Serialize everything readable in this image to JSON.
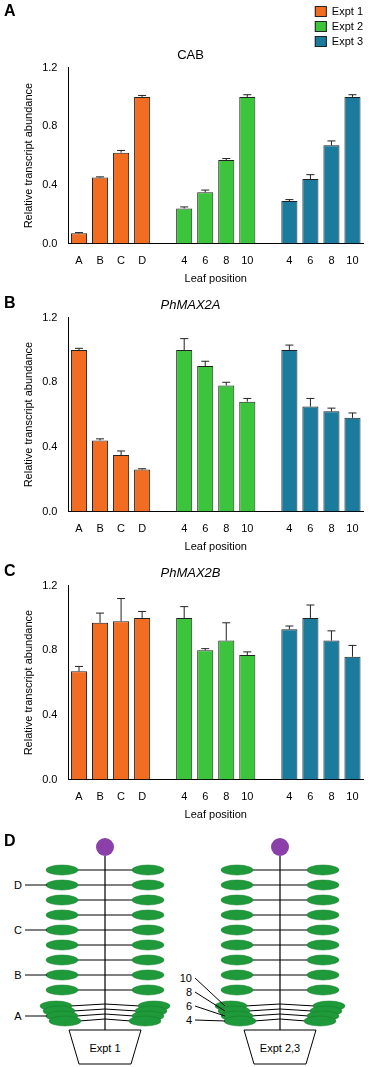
{
  "chart_data": [
    {
      "type": "bar",
      "panel": "A",
      "title": "CAB",
      "x_label": "Leaf position",
      "y_label": "Relative transcript abundance",
      "categories": [
        "A",
        "B",
        "C",
        "D",
        null,
        "4",
        "6",
        "8",
        "10",
        null,
        "4",
        "6",
        "8",
        "10"
      ],
      "series": [
        {
          "name": "Expt 1",
          "color": "#f26c21",
          "values": [
            0.07,
            0.45,
            0.62,
            1.0,
            null,
            null,
            null,
            null,
            null,
            null,
            null,
            null,
            null,
            null
          ],
          "errors": [
            0.005,
            0.005,
            0.015,
            0.01,
            null,
            null,
            null,
            null,
            null,
            null,
            null,
            null,
            null,
            null
          ]
        },
        {
          "name": "Expt 2",
          "color": "#3cc43c",
          "values": [
            null,
            null,
            null,
            null,
            null,
            0.24,
            0.35,
            0.57,
            1.0,
            null,
            null,
            null,
            null,
            null
          ],
          "errors": [
            null,
            null,
            null,
            null,
            null,
            0.01,
            0.015,
            0.01,
            0.015,
            null,
            null,
            null,
            null,
            null
          ]
        },
        {
          "name": "Expt 3",
          "color": "#1b7b9c",
          "values": [
            null,
            null,
            null,
            null,
            null,
            null,
            null,
            null,
            null,
            null,
            0.29,
            0.44,
            0.67,
            1.0
          ],
          "errors": [
            null,
            null,
            null,
            null,
            null,
            null,
            null,
            null,
            null,
            null,
            0.01,
            0.03,
            0.03,
            0.015
          ]
        }
      ],
      "ylim": [
        0,
        1.2
      ],
      "yticks": [
        {
          "value": 0,
          "label": "0.0"
        },
        0.4,
        0.8,
        1.2
      ],
      "grid": false,
      "legend": "top-right"
    },
    {
      "type": "bar",
      "panel": "B",
      "title": "PhMAX2A",
      "x_label": "Leaf position",
      "y_label": "Relative transcript abundance",
      "categories": [
        "A",
        "B",
        "C",
        "D",
        null,
        "4",
        "6",
        "8",
        "10",
        null,
        "4",
        "6",
        "8",
        "10"
      ],
      "series": [
        {
          "name": "Expt 1",
          "color": "#f26c21",
          "values": [
            1.0,
            0.44,
            0.35,
            0.26,
            null,
            null,
            null,
            null,
            null,
            null,
            null,
            null,
            null,
            null
          ],
          "errors": [
            0.01,
            0.01,
            0.025,
            0.005,
            null,
            null,
            null,
            null,
            null,
            null,
            null,
            null,
            null,
            null
          ]
        },
        {
          "name": "Expt 2",
          "color": "#3cc43c",
          "values": [
            null,
            null,
            null,
            null,
            null,
            1.0,
            0.9,
            0.78,
            0.68,
            null,
            null,
            null,
            null,
            null
          ],
          "errors": [
            null,
            null,
            null,
            null,
            null,
            0.07,
            0.03,
            0.02,
            0.02,
            null,
            null,
            null,
            null,
            null
          ]
        },
        {
          "name": "Expt 3",
          "color": "#1b7b9c",
          "values": [
            null,
            null,
            null,
            null,
            null,
            null,
            null,
            null,
            null,
            null,
            1.0,
            0.65,
            0.62,
            0.58
          ],
          "errors": [
            null,
            null,
            null,
            null,
            null,
            null,
            null,
            null,
            null,
            null,
            0.03,
            0.05,
            0.02,
            0.03
          ]
        }
      ],
      "ylim": [
        0,
        1.2
      ],
      "yticks": [
        {
          "value": 0,
          "label": "0.0"
        },
        0.4,
        0.8,
        1.2
      ],
      "grid": false
    },
    {
      "type": "bar",
      "panel": "C",
      "title": "PhMAX2B",
      "x_label": "Leaf position",
      "y_label": "Relative transcript abundance",
      "categories": [
        "A",
        "B",
        "C",
        "D",
        null,
        "4",
        "6",
        "8",
        "10",
        null,
        "4",
        "6",
        "8",
        "10"
      ],
      "series": [
        {
          "name": "Expt 1",
          "color": "#f26c21",
          "values": [
            0.67,
            0.97,
            0.98,
            1.0,
            null,
            null,
            null,
            null,
            null,
            null,
            null,
            null,
            null,
            null
          ],
          "errors": [
            0.03,
            0.06,
            0.14,
            0.04,
            null,
            null,
            null,
            null,
            null,
            null,
            null,
            null,
            null,
            null
          ]
        },
        {
          "name": "Expt 2",
          "color": "#3cc43c",
          "values": [
            null,
            null,
            null,
            null,
            null,
            1.0,
            0.8,
            0.86,
            0.77,
            null,
            null,
            null,
            null,
            null
          ],
          "errors": [
            null,
            null,
            null,
            null,
            null,
            0.07,
            0.01,
            0.11,
            0.02,
            null,
            null,
            null,
            null,
            null
          ]
        },
        {
          "name": "Expt 3",
          "color": "#1b7b9c",
          "values": [
            null,
            null,
            null,
            null,
            null,
            null,
            null,
            null,
            null,
            null,
            0.93,
            1.0,
            0.86,
            0.76
          ],
          "errors": [
            null,
            null,
            null,
            null,
            null,
            null,
            null,
            null,
            null,
            null,
            0.02,
            0.08,
            0.06,
            0.07
          ]
        }
      ],
      "ylim": [
        0,
        1.2
      ],
      "yticks": [
        {
          "value": 0,
          "label": "0.0"
        },
        0.4,
        0.8,
        1.2
      ],
      "grid": false
    }
  ],
  "diagram": {
    "panel": "D",
    "plants": [
      {
        "label": "Expt 1",
        "leaf_labels": [
          "A",
          "B",
          "C",
          "D"
        ]
      },
      {
        "label": "Expt 2,3",
        "leaf_labels": [
          "4",
          "6",
          "8",
          "10"
        ]
      }
    ]
  }
}
